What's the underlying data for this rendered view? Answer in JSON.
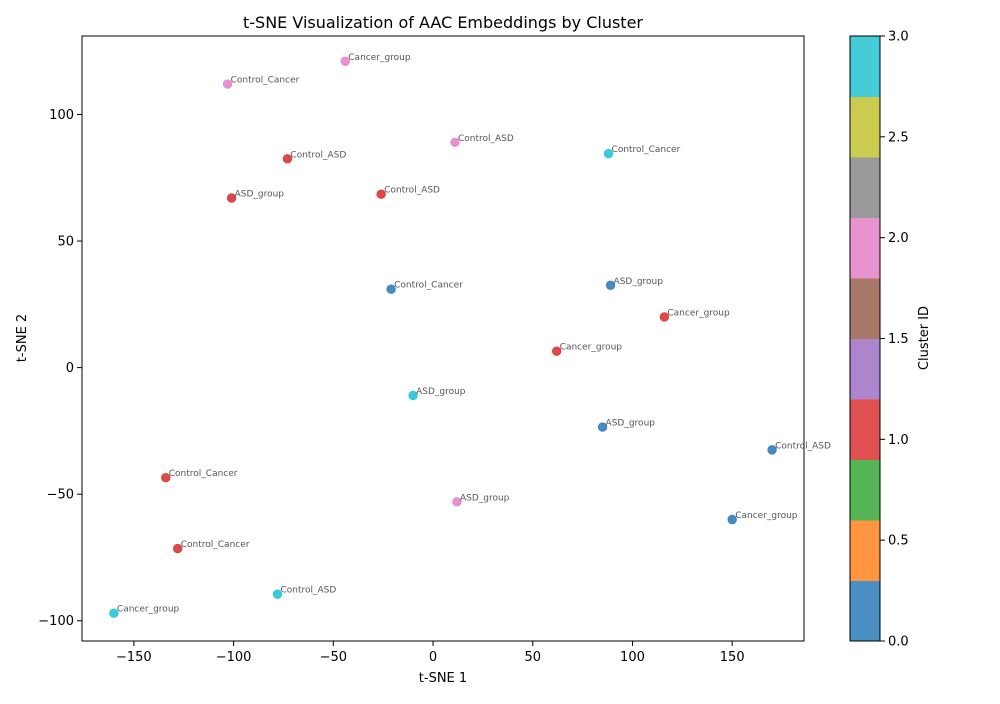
{
  "chart_data": {
    "type": "scatter",
    "title": "t-SNE Visualization of AAC Embeddings by Cluster",
    "xlabel": "t-SNE 1",
    "ylabel": "t-SNE 2",
    "xlim": [
      -176,
      186
    ],
    "ylim": [
      -108,
      131
    ],
    "xticks": [
      -150,
      -100,
      -50,
      0,
      50,
      100,
      150
    ],
    "yticks": [
      -100,
      -50,
      0,
      50,
      100
    ],
    "grid": false,
    "points": [
      {
        "x": -44,
        "y": 121,
        "cluster": 2,
        "label": "Cancer_group"
      },
      {
        "x": -103,
        "y": 112,
        "cluster": 2,
        "label": "Control_Cancer"
      },
      {
        "x": 11,
        "y": 89,
        "cluster": 2,
        "label": "Control_ASD"
      },
      {
        "x": -73,
        "y": 82.5,
        "cluster": 1,
        "label": "Control_ASD"
      },
      {
        "x": 88,
        "y": 84.5,
        "cluster": 3,
        "label": "Control_Cancer"
      },
      {
        "x": -26,
        "y": 68.5,
        "cluster": 1,
        "label": "Control_ASD"
      },
      {
        "x": -101,
        "y": 67,
        "cluster": 1,
        "label": "ASD_group"
      },
      {
        "x": -21,
        "y": 31,
        "cluster": 0,
        "label": "Control_Cancer"
      },
      {
        "x": 89,
        "y": 32.5,
        "cluster": 0,
        "label": "ASD_group"
      },
      {
        "x": 116,
        "y": 20,
        "cluster": 1,
        "label": "Cancer_group"
      },
      {
        "x": 62,
        "y": 6.5,
        "cluster": 1,
        "label": "Cancer_group"
      },
      {
        "x": -10,
        "y": -11,
        "cluster": 3,
        "label": "ASD_group"
      },
      {
        "x": 85,
        "y": -23.5,
        "cluster": 0,
        "label": "ASD_group"
      },
      {
        "x": 170,
        "y": -32.5,
        "cluster": 0,
        "label": "Control_ASD"
      },
      {
        "x": -134,
        "y": -43.5,
        "cluster": 1,
        "label": "Control_Cancer"
      },
      {
        "x": 12,
        "y": -53,
        "cluster": 2,
        "label": "ASD_group"
      },
      {
        "x": 150,
        "y": -60,
        "cluster": 0,
        "label": "Cancer_group"
      },
      {
        "x": -128,
        "y": -71.5,
        "cluster": 1,
        "label": "Control_Cancer"
      },
      {
        "x": -78,
        "y": -89.5,
        "cluster": 3,
        "label": "Control_ASD"
      },
      {
        "x": -160,
        "y": -97,
        "cluster": 3,
        "label": "Cancer_group"
      }
    ],
    "cluster_colors": {
      "0": "#3f84be",
      "1": "#d84040",
      "2": "#e58bd0",
      "3": "#2dc8d8"
    },
    "colorbar": {
      "label": "Cluster ID",
      "range": [
        0,
        3
      ],
      "ticks": [
        0.0,
        0.5,
        1.0,
        1.5,
        2.0,
        2.5,
        3.0
      ],
      "tick_labels": [
        "0.0",
        "0.5",
        "1.0",
        "1.5",
        "2.0",
        "2.5",
        "3.0"
      ],
      "colormap": "tab10",
      "bands": [
        "#4a90c4",
        "#ff9540",
        "#55b555",
        "#e05050",
        "#ad85cc",
        "#a87868",
        "#e893d0",
        "#9a9a9a",
        "#cbcb50",
        "#45ccd8"
      ]
    }
  }
}
